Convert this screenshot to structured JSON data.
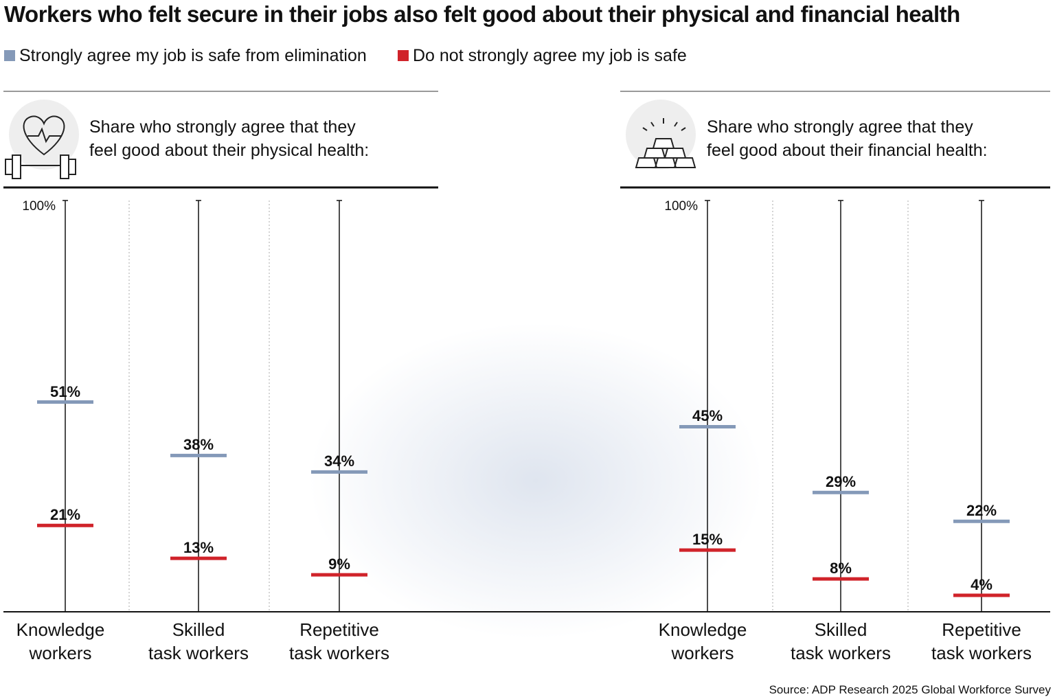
{
  "title": "Workers who felt secure in their jobs also felt good about their physical and financial health",
  "source": "Source: ADP Research 2025 Global Workforce Survey",
  "chart_data": [
    {
      "type": "dot",
      "subtitle": "Share who strongly agree that they\nfeel good about their physical health:",
      "categories": [
        "Knowledge\nworkers",
        "Skilled\ntask workers",
        "Repetitive\ntask workers"
      ],
      "series": [
        {
          "name": "Strongly agree my job is safe from elimination",
          "color": "#8499b8",
          "values": [
            51,
            38,
            34
          ],
          "value_labels": [
            "51%",
            "38%",
            "34%"
          ]
        },
        {
          "name": "Do not strongly agree my job is safe",
          "color": "#d0232a",
          "values": [
            21,
            13,
            9
          ],
          "value_labels": [
            "21%",
            "13%",
            "9%"
          ]
        }
      ],
      "ylim": [
        0,
        100
      ],
      "yticks": [
        {
          "value": 100,
          "label": "100%"
        }
      ]
    },
    {
      "type": "dot",
      "subtitle": "Share who strongly agree that they\nfeel good about their financial health:",
      "categories": [
        "Knowledge\nworkers",
        "Skilled\ntask workers",
        "Repetitive\ntask workers"
      ],
      "series": [
        {
          "color": "#8499b8",
          "values": [
            45,
            29,
            22
          ],
          "value_labels": [
            "45%",
            "29%",
            "22%"
          ]
        },
        {
          "color": "#d0232a",
          "values": [
            15,
            8,
            4
          ],
          "value_labels": [
            "15%",
            "8%",
            "4%"
          ]
        }
      ],
      "ylim": [
        0,
        100
      ],
      "yticks": [
        {
          "value": 100,
          "label": "100%"
        }
      ]
    }
  ]
}
